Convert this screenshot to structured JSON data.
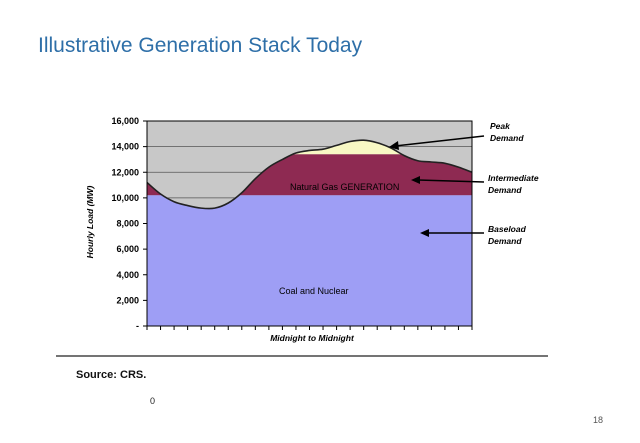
{
  "slide": {
    "title": "Illustrative Generation Stack Today",
    "source": "Source: CRS.",
    "footnote": "0",
    "page_number": "18"
  },
  "colors": {
    "background": "#c8c8c8",
    "baseload": "#9e9ef5",
    "intermediate": "#8e2a52",
    "peak": "#f8f8c4",
    "title": "#2e6fa8"
  },
  "chart_data": {
    "type": "area",
    "title": "",
    "xlabel": "Midnight to Midnight",
    "ylabel": "Hourly Load (MW)",
    "ylim": [
      0,
      16000
    ],
    "yticks": [
      0,
      2000,
      4000,
      6000,
      8000,
      10000,
      12000,
      14000,
      16000
    ],
    "ytick_labels": [
      "-",
      "2,000",
      "4,000",
      "6,000",
      "8,000",
      "10,000",
      "12,000",
      "14,000",
      "16,000"
    ],
    "grid": true,
    "x_hours": [
      0,
      1,
      2,
      3,
      4,
      5,
      6,
      7,
      8,
      9,
      10,
      11,
      12,
      13,
      14,
      15,
      16,
      17,
      18,
      19,
      20,
      21,
      22,
      23,
      24
    ],
    "demand": [
      11200,
      10300,
      9700,
      9400,
      9200,
      9200,
      9600,
      10400,
      11500,
      12400,
      13000,
      13500,
      13700,
      13800,
      14100,
      14400,
      14500,
      14300,
      13900,
      13300,
      12900,
      12800,
      12700,
      12400,
      12000
    ],
    "baseload_level": 10200,
    "intermediate_cap": 13400,
    "regions": {
      "baseload": "Coal and Nuclear",
      "intermediate": "Natural Gas GENERATION"
    },
    "annotations": {
      "peak": [
        "Peak",
        "Demand"
      ],
      "intermediate": [
        "Intermediate",
        "Demand"
      ],
      "baseload": [
        "Baseload",
        "Demand"
      ]
    }
  }
}
